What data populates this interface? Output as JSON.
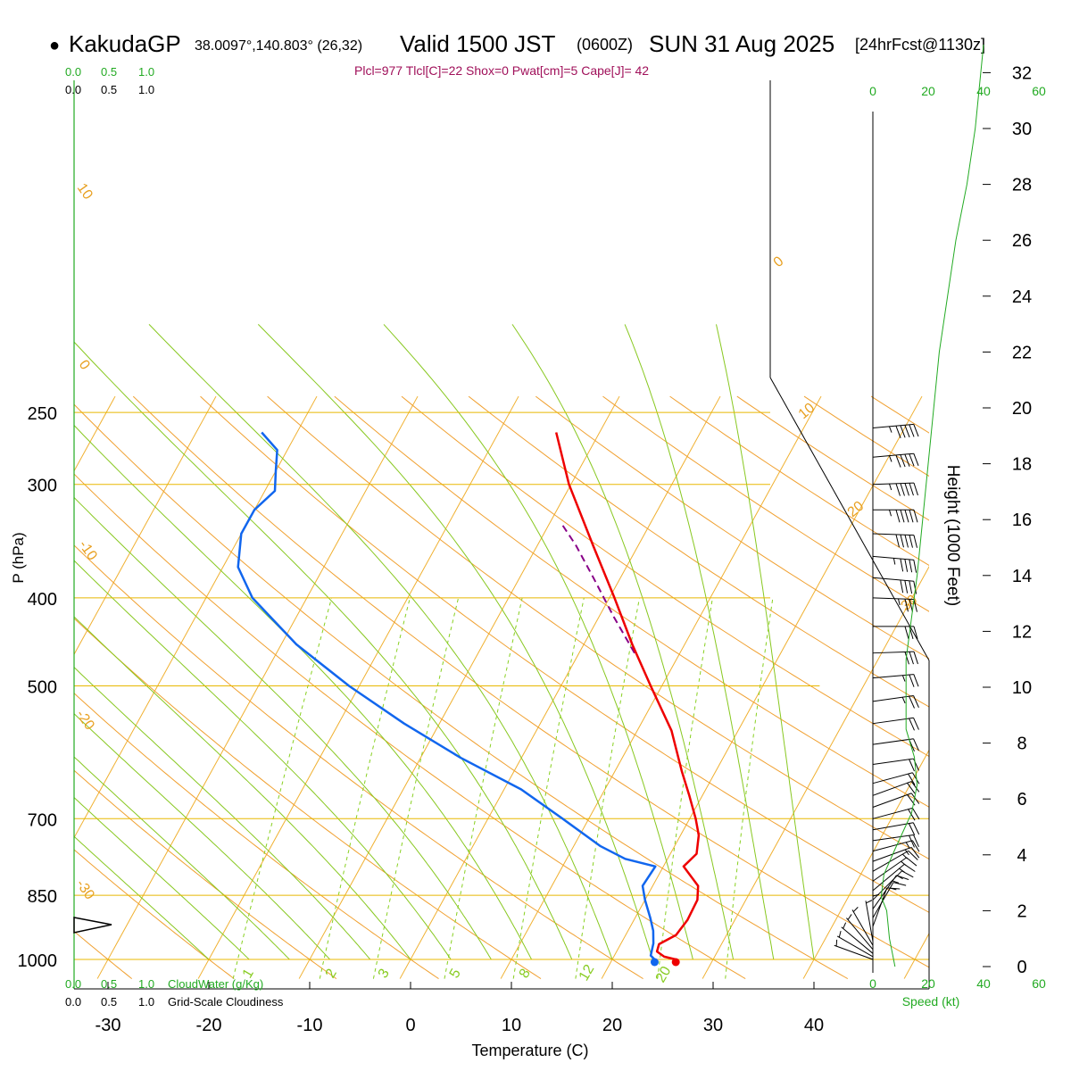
{
  "header": {
    "dot": "●",
    "station": "KakudaGP",
    "coords": "38.0097°,140.803° (26,32)",
    "valid": "Valid 1500 JST",
    "zulu": "(0600Z)",
    "date": "SUN 31 Aug 2025",
    "forecast": "[24hrFcst@1130z]"
  },
  "indices_line": "Plcl=977 Tlcl[C]=22 Shox=0 Pwat[cm]=5 Cape[J]= 42",
  "colors": {
    "temperature": "#ee0000",
    "dewpoint": "#1166ee",
    "parcel": "#880088",
    "isobar": "#e8b800",
    "isotherm": "#f0b030",
    "dry_adiabat": "#f0a030",
    "moist_adiabat": "#88c820",
    "mixing_ratio": "#88d020",
    "cloud": "#22aa22",
    "wind_profile": "#22aa22"
  },
  "chart_data": {
    "type": "skew-t",
    "title": "KakudaGP Valid 1500 JST (0600Z) SUN 31 Aug 2025",
    "xlabel": "Temperature (C)",
    "ylabel": "P (hPa)",
    "right_axis_label": "Height (1000 Feet)",
    "pressure_ticks": [
      250,
      300,
      400,
      500,
      700,
      850,
      1000
    ],
    "pressure_range": [
      250,
      1000
    ],
    "temperature_ticks": [
      "-30",
      "-20",
      "-10",
      "0",
      "10",
      "20",
      "30",
      "40"
    ],
    "temperature_range_at_1000": [
      -34,
      36
    ],
    "height_ticks": [
      "0",
      "2",
      "4",
      "6",
      "8",
      "10",
      "12",
      "14",
      "16",
      "18",
      "20",
      "22",
      "24",
      "26",
      "28",
      "30",
      "32"
    ],
    "top_cloud_scale": {
      "cloudwater": [
        "0.0",
        "0.5",
        "1.0"
      ],
      "cloudiness": [
        "0.0",
        "0.5",
        "1.0"
      ]
    },
    "bottom_cloud_scale": {
      "cloudwater": [
        "0.0",
        "0.5",
        "1.0"
      ],
      "cloudwater_label": "CloudWater (g/Kg)",
      "cloudiness": [
        "0.0",
        "0.5",
        "1.0"
      ],
      "cloudiness_label": "Grid-Scale Cloudiness"
    },
    "speed_ticks": [
      "0",
      "20",
      "40",
      "60"
    ],
    "speed_label": "Speed (kt)",
    "dry_adiabat_labels": [
      "10",
      "0",
      "-10",
      "-20",
      "-30"
    ],
    "isotherm_labels": [
      "0",
      "10",
      "20",
      "30"
    ],
    "mixing_ratio_labels": [
      "1",
      "2",
      "3",
      "5",
      "8",
      "12",
      "20"
    ],
    "temperature_profile": [
      {
        "p": 1000,
        "t": 26.3
      },
      {
        "p": 993,
        "t": 25.0
      },
      {
        "p": 980,
        "t": 24.0
      },
      {
        "p": 962,
        "t": 23.8
      },
      {
        "p": 940,
        "t": 25.0
      },
      {
        "p": 905,
        "t": 25.3
      },
      {
        "p": 860,
        "t": 25.2
      },
      {
        "p": 830,
        "t": 24.5
      },
      {
        "p": 790,
        "t": 22.0
      },
      {
        "p": 765,
        "t": 22.6
      },
      {
        "p": 730,
        "t": 21.8
      },
      {
        "p": 700,
        "t": 20.6
      },
      {
        "p": 660,
        "t": 18.7
      },
      {
        "p": 620,
        "t": 16.6
      },
      {
        "p": 560,
        "t": 13.4
      },
      {
        "p": 500,
        "t": 8.9
      },
      {
        "p": 450,
        "t": 4.8
      },
      {
        "p": 400,
        "t": 0.5
      },
      {
        "p": 350,
        "t": -4.5
      },
      {
        "p": 300,
        "t": -10.2
      },
      {
        "p": 263,
        "t": -14.3
      }
    ],
    "dewpoint_profile": [
      {
        "p": 1000,
        "t": 24.2
      },
      {
        "p": 990,
        "t": 23.6
      },
      {
        "p": 960,
        "t": 23.2
      },
      {
        "p": 930,
        "t": 22.5
      },
      {
        "p": 900,
        "t": 21.5
      },
      {
        "p": 860,
        "t": 20.0
      },
      {
        "p": 830,
        "t": 19.0
      },
      {
        "p": 790,
        "t": 19.2
      },
      {
        "p": 775,
        "t": 15.8
      },
      {
        "p": 750,
        "t": 12.6
      },
      {
        "p": 700,
        "t": 7.4
      },
      {
        "p": 650,
        "t": 1.7
      },
      {
        "p": 600,
        "t": -6.0
      },
      {
        "p": 550,
        "t": -13.5
      },
      {
        "p": 500,
        "t": -21.0
      },
      {
        "p": 450,
        "t": -28.5
      },
      {
        "p": 400,
        "t": -35.4
      },
      {
        "p": 370,
        "t": -38.5
      },
      {
        "p": 340,
        "t": -40.0
      },
      {
        "p": 320,
        "t": -40.0
      },
      {
        "p": 305,
        "t": -39.0
      },
      {
        "p": 290,
        "t": -40.0
      },
      {
        "p": 275,
        "t": -41.0
      },
      {
        "p": 263,
        "t": -43.5
      }
    ],
    "parcel_profile": [
      {
        "p": 460,
        "t": 5.5
      },
      {
        "p": 420,
        "t": 1.5
      },
      {
        "p": 380,
        "t": -2.7
      },
      {
        "p": 350,
        "t": -6.2
      },
      {
        "p": 330,
        "t": -9.0
      }
    ],
    "surface_temperature_c": 26.3,
    "surface_dewpoint_c": 24.2,
    "wind_barbs": [
      {
        "p": 260,
        "dir": 265,
        "kt": 55
      },
      {
        "p": 280,
        "dir": 265,
        "kt": 55
      },
      {
        "p": 300,
        "dir": 268,
        "kt": 55
      },
      {
        "p": 320,
        "dir": 270,
        "kt": 55
      },
      {
        "p": 340,
        "dir": 272,
        "kt": 50
      },
      {
        "p": 360,
        "dir": 275,
        "kt": 45
      },
      {
        "p": 380,
        "dir": 275,
        "kt": 40
      },
      {
        "p": 400,
        "dir": 272,
        "kt": 35
      },
      {
        "p": 430,
        "dir": 270,
        "kt": 30
      },
      {
        "p": 460,
        "dir": 268,
        "kt": 30
      },
      {
        "p": 490,
        "dir": 265,
        "kt": 25
      },
      {
        "p": 520,
        "dir": 262,
        "kt": 25
      },
      {
        "p": 550,
        "dir": 262,
        "kt": 20
      },
      {
        "p": 580,
        "dir": 262,
        "kt": 20
      },
      {
        "p": 610,
        "dir": 262,
        "kt": 20
      },
      {
        "p": 640,
        "dir": 255,
        "kt": 20
      },
      {
        "p": 660,
        "dir": 250,
        "kt": 20
      },
      {
        "p": 680,
        "dir": 250,
        "kt": 20
      },
      {
        "p": 700,
        "dir": 255,
        "kt": 20
      },
      {
        "p": 720,
        "dir": 260,
        "kt": 20
      },
      {
        "p": 740,
        "dir": 262,
        "kt": 20
      },
      {
        "p": 760,
        "dir": 255,
        "kt": 15
      },
      {
        "p": 780,
        "dir": 250,
        "kt": 15
      },
      {
        "p": 800,
        "dir": 240,
        "kt": 15
      },
      {
        "p": 820,
        "dir": 235,
        "kt": 15
      },
      {
        "p": 840,
        "dir": 230,
        "kt": 15
      },
      {
        "p": 860,
        "dir": 225,
        "kt": 15
      },
      {
        "p": 880,
        "dir": 215,
        "kt": 15
      },
      {
        "p": 900,
        "dir": 210,
        "kt": 15
      },
      {
        "p": 920,
        "dir": 200,
        "kt": 10
      },
      {
        "p": 940,
        "dir": 180,
        "kt": 5
      },
      {
        "p": 955,
        "dir": 170,
        "kt": 5
      },
      {
        "p": 965,
        "dir": 150,
        "kt": 5
      },
      {
        "p": 975,
        "dir": 140,
        "kt": 5
      },
      {
        "p": 985,
        "dir": 130,
        "kt": 5
      },
      {
        "p": 993,
        "dir": 120,
        "kt": 5
      },
      {
        "p": 1000,
        "dir": 110,
        "kt": 5
      }
    ],
    "wind_speed_profile": [
      {
        "h": 0,
        "kt": 8
      },
      {
        "h": 1,
        "kt": 6
      },
      {
        "h": 2,
        "kt": 5
      },
      {
        "h": 2.5,
        "kt": 3
      },
      {
        "h": 3.3,
        "kt": 4
      },
      {
        "h": 4.2,
        "kt": 8
      },
      {
        "h": 5.5,
        "kt": 14
      },
      {
        "h": 6.5,
        "kt": 16
      },
      {
        "h": 7.5,
        "kt": 15
      },
      {
        "h": 8.5,
        "kt": 12
      },
      {
        "h": 10,
        "kt": 12
      },
      {
        "h": 11,
        "kt": 12
      },
      {
        "h": 12.5,
        "kt": 14
      },
      {
        "h": 14,
        "kt": 16
      },
      {
        "h": 16,
        "kt": 18
      },
      {
        "h": 18,
        "kt": 20
      },
      {
        "h": 20,
        "kt": 22
      },
      {
        "h": 22,
        "kt": 24
      },
      {
        "h": 24,
        "kt": 27
      },
      {
        "h": 26,
        "kt": 30
      },
      {
        "h": 28,
        "kt": 34
      },
      {
        "h": 30,
        "kt": 37
      },
      {
        "h": 32,
        "kt": 39
      },
      {
        "h": 33,
        "kt": 40
      }
    ],
    "cloudiness_marker_height_p": 950
  }
}
